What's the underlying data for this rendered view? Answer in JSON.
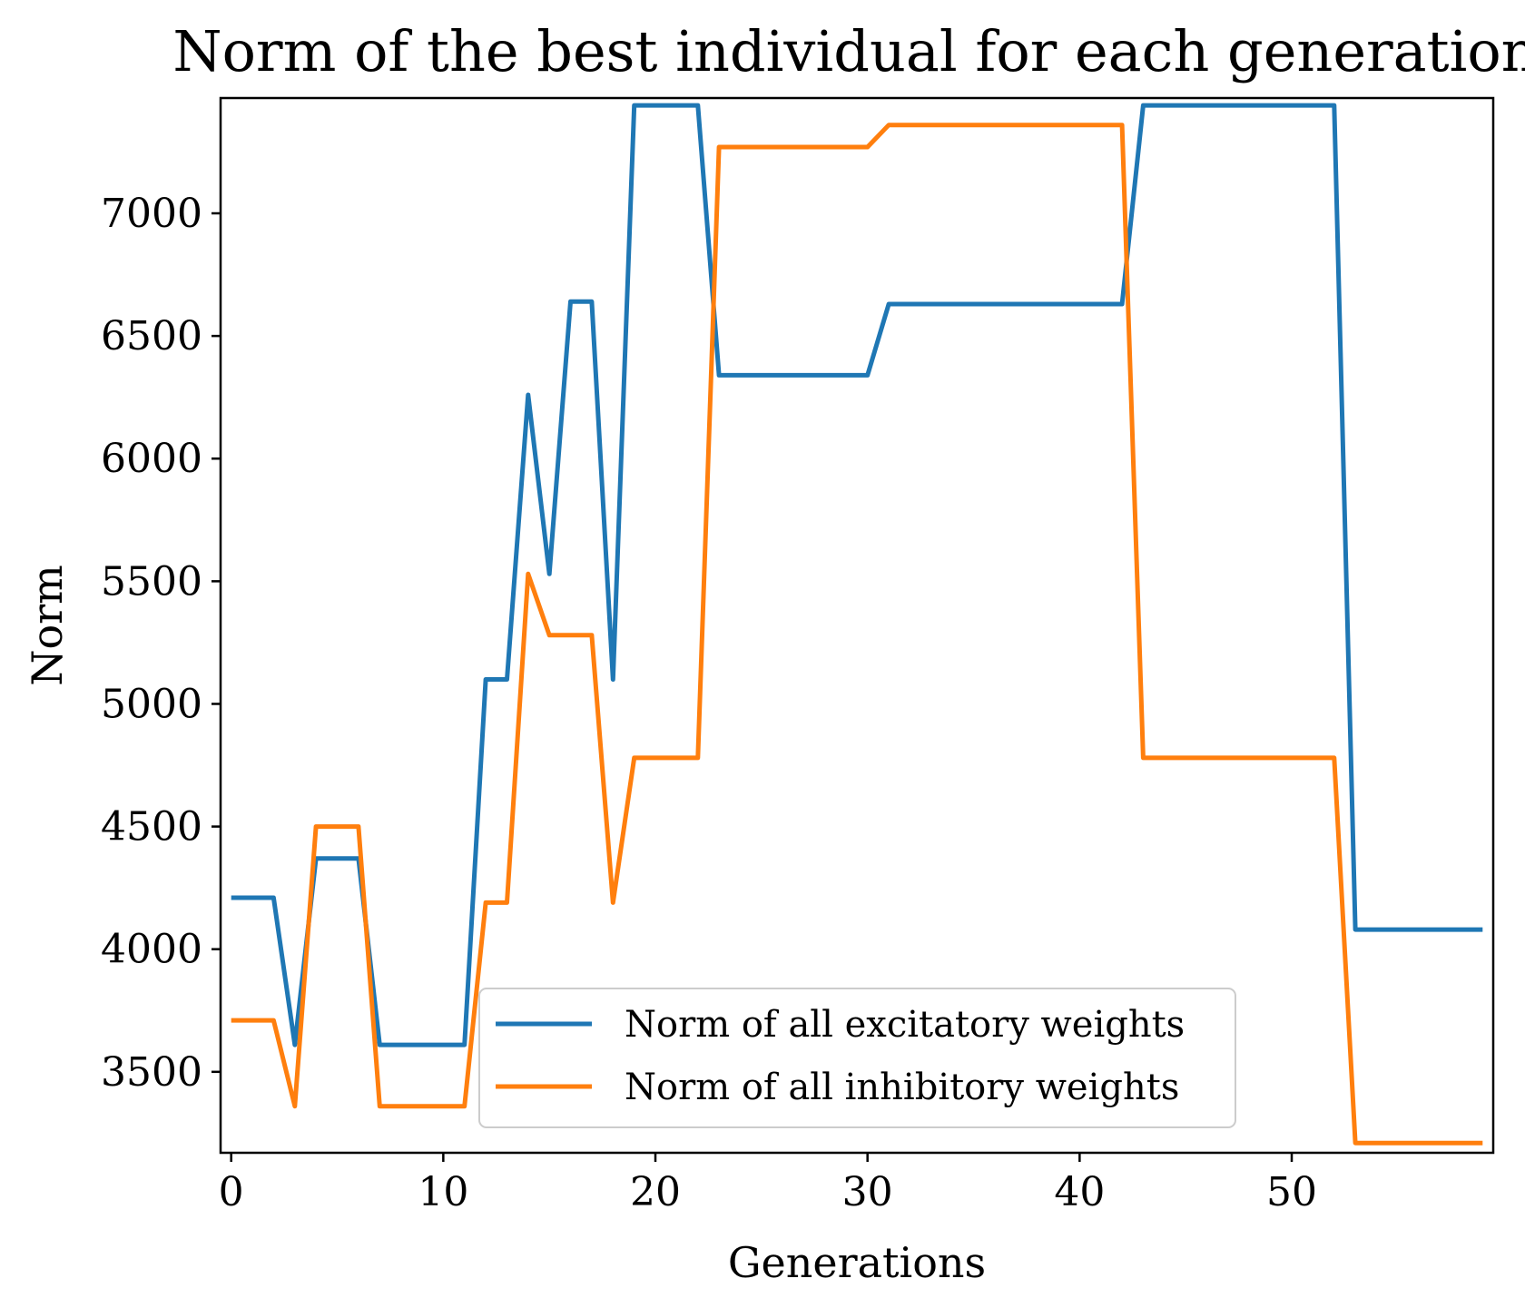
{
  "chart_data": {
    "type": "line",
    "title": "Norm of the best individual for each generation",
    "xlabel": "Generations",
    "ylabel": "Norm",
    "xlim": [
      -0.5,
      59.5
    ],
    "ylim": [
      3170,
      7470
    ],
    "xticks": [
      0,
      10,
      20,
      30,
      40,
      50
    ],
    "yticks": [
      3500,
      4000,
      4500,
      5000,
      5500,
      6000,
      6500,
      7000
    ],
    "grid": false,
    "legend_position": "lower-center",
    "x": [
      0,
      1,
      2,
      3,
      4,
      5,
      6,
      7,
      8,
      9,
      10,
      11,
      12,
      13,
      14,
      15,
      16,
      17,
      18,
      19,
      20,
      21,
      22,
      23,
      24,
      25,
      26,
      27,
      28,
      29,
      30,
      31,
      32,
      33,
      34,
      35,
      36,
      37,
      38,
      39,
      40,
      41,
      42,
      43,
      44,
      45,
      46,
      47,
      48,
      49,
      50,
      51,
      52,
      53,
      54,
      55,
      56,
      57,
      58,
      59
    ],
    "series": [
      {
        "name": "Norm of all excitatory weights",
        "color": "#1f77b4",
        "values": [
          4210,
          4210,
          4210,
          3610,
          4370,
          4370,
          4370,
          3610,
          3610,
          3610,
          3610,
          3610,
          5100,
          5100,
          6260,
          5530,
          6640,
          6640,
          5100,
          7440,
          7440,
          7440,
          7440,
          6340,
          6340,
          6340,
          6340,
          6340,
          6340,
          6340,
          6340,
          6630,
          6630,
          6630,
          6630,
          6630,
          6630,
          6630,
          6630,
          6630,
          6630,
          6630,
          6630,
          7440,
          7440,
          7440,
          7440,
          7440,
          7440,
          7440,
          7440,
          7440,
          7440,
          4080,
          4080,
          4080,
          4080,
          4080,
          4080,
          4080
        ]
      },
      {
        "name": "Norm of all inhibitory weights",
        "color": "#ff7f0e",
        "values": [
          3710,
          3710,
          3710,
          3360,
          4500,
          4500,
          4500,
          3360,
          3360,
          3360,
          3360,
          3360,
          4190,
          4190,
          5530,
          5280,
          5280,
          5280,
          4190,
          4780,
          4780,
          4780,
          4780,
          7270,
          7270,
          7270,
          7270,
          7270,
          7270,
          7270,
          7270,
          7360,
          7360,
          7360,
          7360,
          7360,
          7360,
          7360,
          7360,
          7360,
          7360,
          7360,
          7360,
          4780,
          4780,
          4780,
          4780,
          4780,
          4780,
          4780,
          4780,
          4780,
          4780,
          3210,
          3210,
          3210,
          3210,
          3210,
          3210,
          3210
        ]
      }
    ]
  }
}
